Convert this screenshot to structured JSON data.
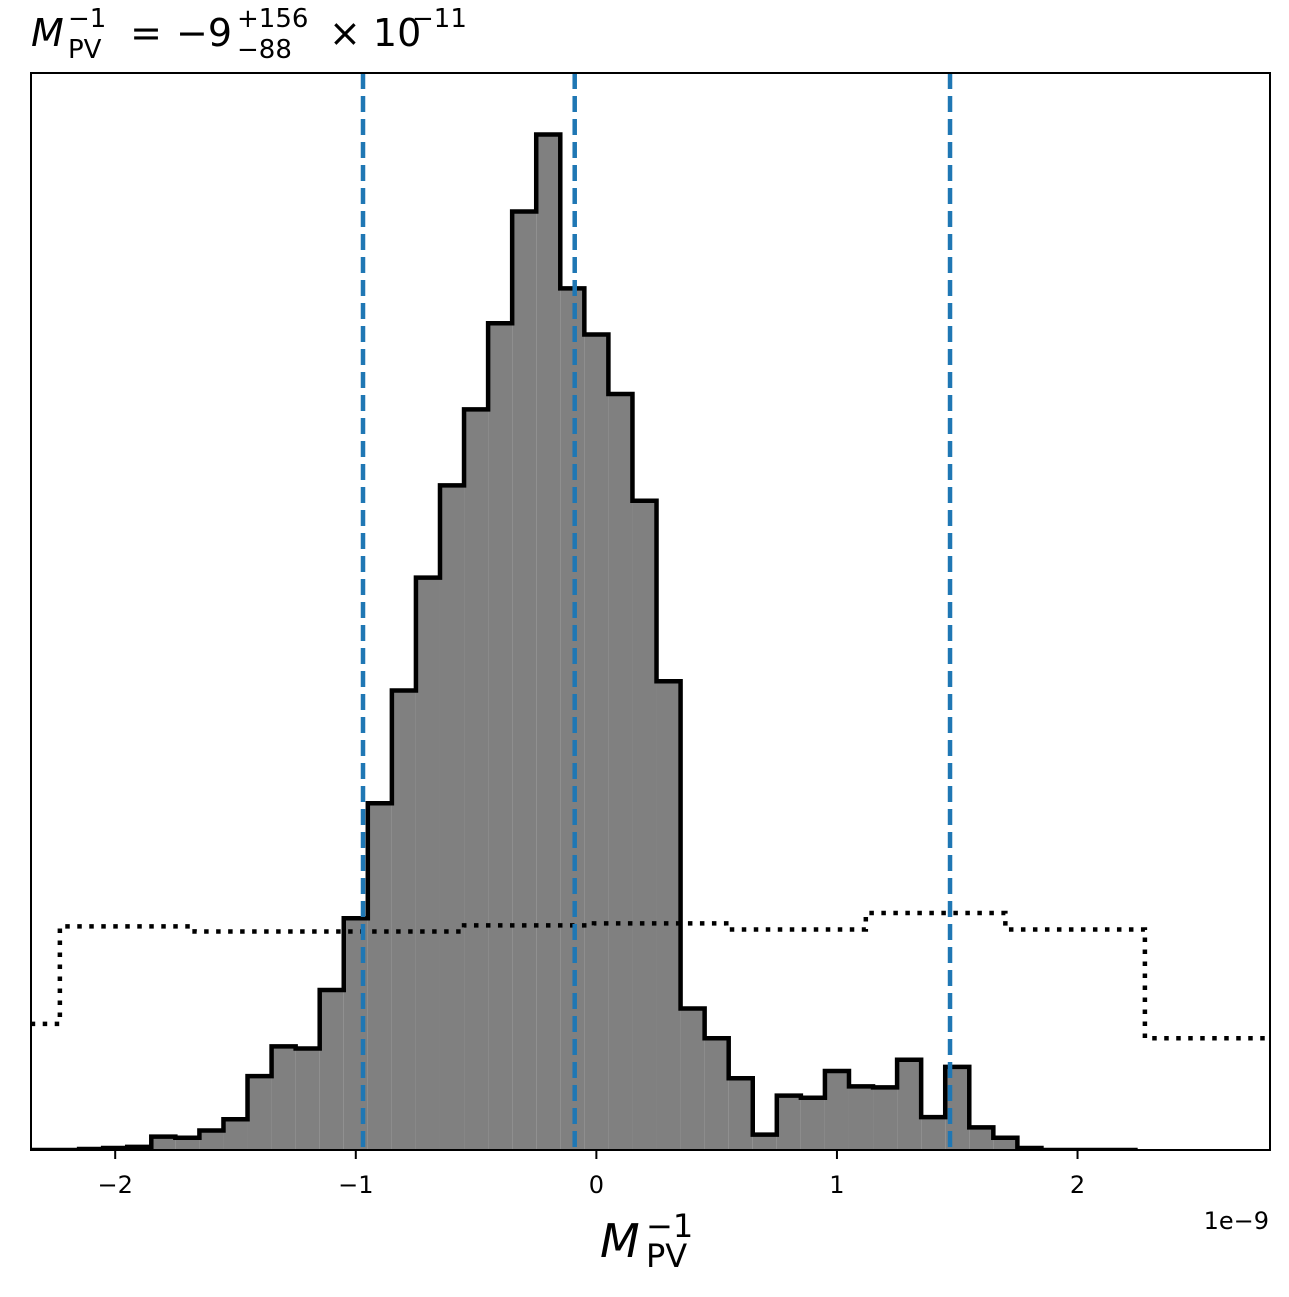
{
  "chart_data": {
    "type": "histogram",
    "title": {
      "symbol": "M",
      "symbol_superscript": "−1",
      "symbol_subscript": "PV",
      "equals": " = ",
      "value": "−9",
      "upper_error": "+156",
      "lower_error": "−88",
      "multiplier": "× 10",
      "exponent": "−11"
    },
    "xlabel": {
      "symbol": "M",
      "superscript": "−1",
      "subscript": "PV"
    },
    "x_offset_text": "1e−9",
    "x_scale": 1e-09,
    "xlim": [
      -2.35,
      2.8
    ],
    "ylim": [
      0,
      1.05
    ],
    "x_ticks": [
      {
        "value": -2,
        "label": "−2"
      },
      {
        "value": -1,
        "label": "−1"
      },
      {
        "value": 0,
        "label": "0"
      },
      {
        "value": 1,
        "label": "1"
      },
      {
        "value": 2,
        "label": "2"
      }
    ],
    "colors": {
      "posterior_fill": "#808080",
      "posterior_edge": "#000000",
      "prior_line": "#000000",
      "quantile_lines": "#1f77b4"
    },
    "posterior": {
      "name": "",
      "bin_edges": [
        -2.55,
        -2.45,
        -2.35,
        -2.25,
        -2.15,
        -2.05,
        -1.95,
        -1.85,
        -1.75,
        -1.65,
        -1.55,
        -1.45,
        -1.35,
        -1.25,
        -1.15,
        -1.05,
        -0.95,
        -0.85,
        -0.75,
        -0.65,
        -0.55,
        -0.45,
        -0.35,
        -0.25,
        -0.15,
        -0.05,
        0.05,
        0.15,
        0.25,
        0.35,
        0.45,
        0.55,
        0.65,
        0.75,
        0.85,
        0.95,
        1.05,
        1.15,
        1.25,
        1.35,
        1.45,
        1.55,
        1.65,
        1.75,
        1.85,
        1.95,
        2.05,
        2.15,
        2.25
      ],
      "values": [
        0.0,
        0.0,
        0.0,
        0.0,
        0.001,
        0.002,
        0.003,
        0.013,
        0.012,
        0.019,
        0.03,
        0.072,
        0.101,
        0.099,
        0.156,
        0.226,
        0.338,
        0.448,
        0.558,
        0.648,
        0.722,
        0.806,
        0.915,
        0.99,
        0.84,
        0.795,
        0.737,
        0.633,
        0.457,
        0.138,
        0.109,
        0.07,
        0.015,
        0.053,
        0.051,
        0.077,
        0.062,
        0.061,
        0.088,
        0.032,
        0.081,
        0.022,
        0.012,
        0.002,
        0.0,
        0.0,
        0.0,
        0.0
      ]
    },
    "prior": {
      "name": "",
      "style": "dotted",
      "bin_edges": [
        -2.85,
        -2.23,
        -1.67,
        -1.12,
        -0.55,
        -0.01,
        0.54,
        1.12,
        1.7,
        2.28,
        2.85
      ],
      "values": [
        0.123,
        0.218,
        0.213,
        0.213,
        0.219,
        0.221,
        0.215,
        0.231,
        0.215,
        0.109
      ]
    },
    "quantile_lines": [
      -0.97,
      -0.09,
      1.47
    ],
    "grid": false,
    "legend": "none"
  }
}
